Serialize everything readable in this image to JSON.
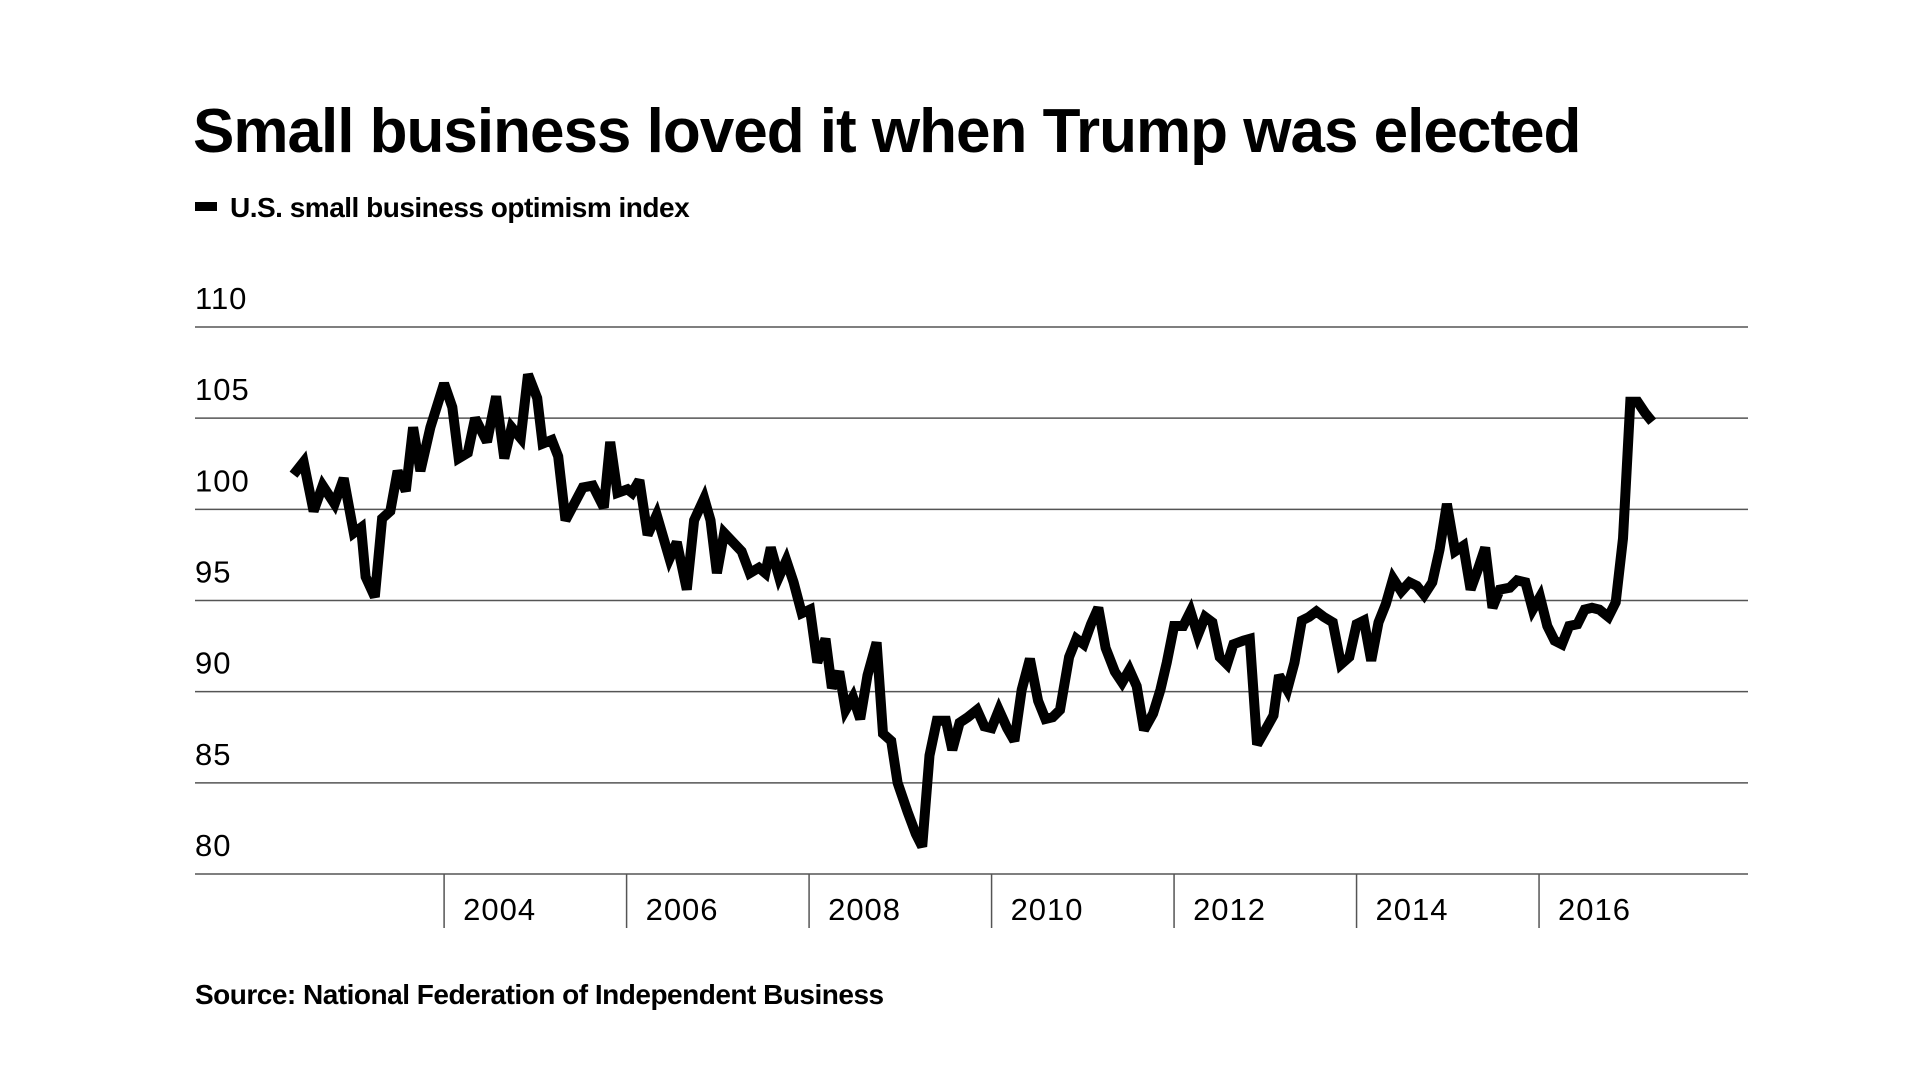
{
  "chart_data": {
    "type": "line",
    "title": "Small business loved it when Trump was elected",
    "source": "Source: National Federation of Independent Business",
    "xlim": [
      2001.27,
      2018.29
    ],
    "xticks": [
      2004,
      2006,
      2008,
      2010,
      2012,
      2014,
      2016
    ],
    "ylim": [
      80,
      110
    ],
    "yticks": [
      80,
      85,
      90,
      95,
      100,
      105,
      110
    ],
    "grid": true,
    "series": [
      {
        "name": "U.S. small business optimism index",
        "color": "#000000",
        "x": [
          2002.35,
          2002.46,
          2002.57,
          2002.67,
          2002.8,
          2002.9,
          2003.01,
          2003.09,
          2003.14,
          2003.24,
          2003.32,
          2003.41,
          2003.49,
          2003.58,
          2003.66,
          2003.74,
          2003.85,
          2004.0,
          2004.09,
          2004.16,
          2004.26,
          2004.34,
          2004.47,
          2004.57,
          2004.66,
          2004.74,
          2004.84,
          2004.92,
          2005.02,
          2005.08,
          2005.18,
          2005.25,
          2005.33,
          2005.52,
          2005.63,
          2005.75,
          2005.82,
          2005.9,
          2006.01,
          2006.06,
          2006.14,
          2006.23,
          2006.33,
          2006.47,
          2006.55,
          2006.66,
          2006.74,
          2006.85,
          2006.92,
          2006.99,
          2007.07,
          2007.26,
          2007.35,
          2007.45,
          2007.52,
          2007.58,
          2007.67,
          2007.75,
          2007.83,
          2007.92,
          2008.01,
          2008.09,
          2008.18,
          2008.25,
          2008.33,
          2008.4,
          2008.48,
          2008.56,
          2008.64,
          2008.74,
          2008.81,
          2008.9,
          2008.97,
          2009.08,
          2009.17,
          2009.24,
          2009.32,
          2009.4,
          2009.5,
          2009.57,
          2009.65,
          2009.74,
          2009.84,
          2009.92,
          2010.0,
          2010.08,
          2010.17,
          2010.25,
          2010.33,
          2010.42,
          2010.51,
          2010.59,
          2010.67,
          2010.75,
          2010.85,
          2010.93,
          2011.01,
          2011.09,
          2011.17,
          2011.25,
          2011.35,
          2011.43,
          2011.51,
          2011.59,
          2011.67,
          2011.77,
          2011.85,
          2011.92,
          2012.0,
          2012.1,
          2012.18,
          2012.26,
          2012.34,
          2012.42,
          2012.5,
          2012.58,
          2012.65,
          2012.76,
          2012.83,
          2012.91,
          2012.99,
          2013.09,
          2013.15,
          2013.24,
          2013.32,
          2013.4,
          2013.48,
          2013.56,
          2013.64,
          2013.74,
          2013.83,
          2013.92,
          2014.0,
          2014.08,
          2014.16,
          2014.24,
          2014.32,
          2014.4,
          2014.49,
          2014.58,
          2014.66,
          2014.74,
          2014.83,
          2014.91,
          2014.99,
          2015.08,
          2015.17,
          2015.25,
          2015.33,
          2015.41,
          2015.49,
          2015.57,
          2015.68,
          2015.76,
          2015.85,
          2015.93,
          2016.01,
          2016.09,
          2016.17,
          2016.25,
          2016.33,
          2016.42,
          2016.5,
          2016.58,
          2016.66,
          2016.76,
          2016.84,
          2016.92,
          2017.0,
          2017.08,
          2017.16,
          2017.24
        ],
        "values": [
          101.9,
          102.6,
          99.9,
          101.3,
          100.3,
          101.7,
          98.7,
          99.0,
          96.3,
          95.2,
          99.5,
          99.9,
          102.1,
          101.0,
          104.5,
          102.1,
          104.5,
          106.9,
          105.6,
          102.8,
          103.1,
          105.0,
          103.7,
          106.2,
          102.8,
          104.5,
          103.9,
          107.4,
          106.1,
          103.6,
          103.8,
          102.9,
          99.4,
          101.2,
          101.3,
          100.1,
          103.7,
          100.9,
          101.1,
          100.9,
          101.6,
          98.6,
          99.7,
          97.3,
          98.2,
          95.6,
          99.4,
          100.6,
          99.4,
          96.5,
          98.7,
          97.7,
          96.5,
          96.8,
          96.5,
          97.9,
          96.3,
          97.2,
          96.0,
          94.3,
          94.5,
          91.6,
          92.9,
          90.2,
          91.1,
          89.0,
          89.7,
          88.5,
          90.9,
          92.7,
          87.7,
          87.3,
          85.0,
          83.4,
          82.2,
          81.5,
          86.5,
          88.4,
          88.4,
          86.8,
          88.3,
          88.6,
          89.0,
          88.1,
          88.0,
          89.0,
          88.0,
          87.3,
          90.1,
          91.8,
          89.5,
          88.5,
          88.6,
          89.0,
          91.9,
          92.9,
          92.6,
          93.7,
          94.6,
          92.4,
          91.1,
          90.5,
          91.2,
          90.3,
          87.9,
          88.8,
          90.1,
          91.6,
          93.6,
          93.6,
          94.4,
          93.1,
          94.1,
          93.8,
          91.9,
          91.5,
          92.6,
          92.8,
          92.9,
          87.1,
          87.8,
          88.7,
          90.9,
          90.1,
          91.6,
          93.9,
          94.1,
          94.4,
          94.1,
          93.8,
          91.5,
          91.9,
          93.7,
          93.9,
          91.7,
          93.8,
          94.8,
          96.2,
          95.5,
          96.0,
          95.8,
          95.3,
          96.0,
          97.8,
          100.3,
          97.7,
          98.0,
          95.6,
          96.7,
          97.9,
          94.6,
          95.6,
          95.7,
          96.1,
          96.0,
          94.5,
          95.2,
          93.6,
          92.8,
          92.6,
          93.6,
          93.7,
          94.5,
          94.6,
          94.5,
          94.1,
          94.9,
          98.4,
          105.9,
          105.9,
          105.3,
          104.8
        ]
      }
    ]
  }
}
